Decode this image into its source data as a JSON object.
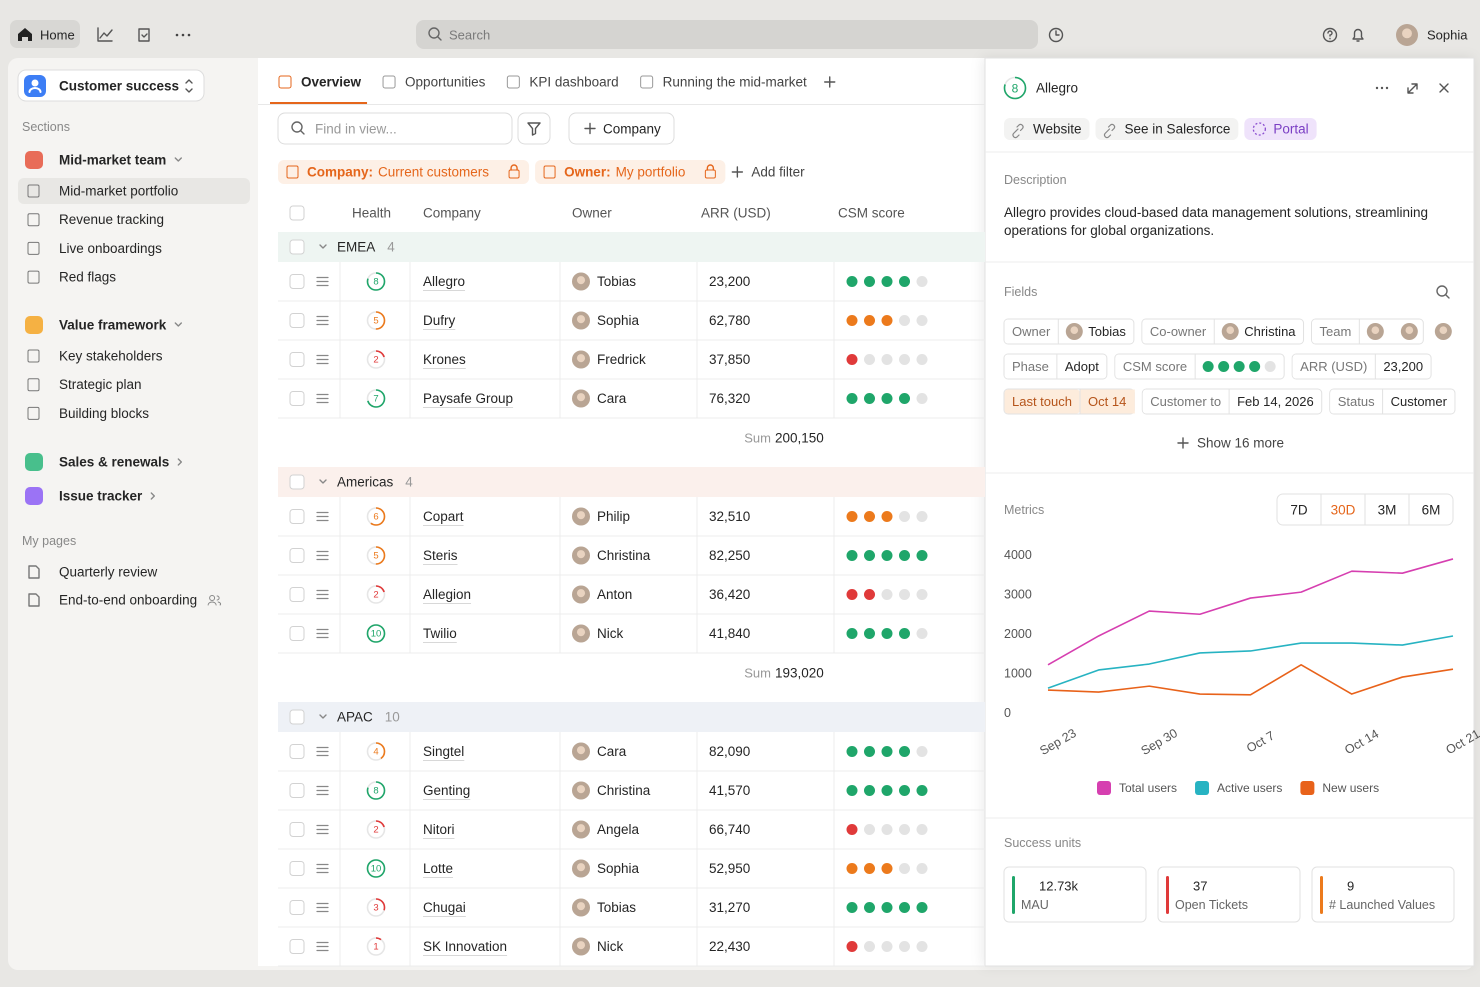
{
  "topbar": {
    "home": "Home",
    "search": "Search",
    "user": "Sophia"
  },
  "sidebar": {
    "workspace": "Customer success",
    "sections_label": "Sections",
    "sections": [
      {
        "name": "Mid-market team",
        "items": [
          "Mid-market portfolio",
          "Revenue tracking",
          "Live onboardings",
          "Red flags"
        ]
      },
      {
        "name": "Value framework",
        "items": [
          "Key stakeholders",
          "Strategic plan",
          "Building blocks"
        ]
      },
      {
        "name": "Sales & renewals",
        "items": []
      },
      {
        "name": "Issue tracker",
        "items": []
      }
    ],
    "my_pages_label": "My pages",
    "pages": [
      "Quarterly review",
      "End-to-end onboarding"
    ]
  },
  "tabs": [
    "Overview",
    "Opportunities",
    "KPI dashboard",
    "Running the mid-market"
  ],
  "toolbar": {
    "find": "Find in view...",
    "add": "Company"
  },
  "filters": [
    {
      "key": "Company:",
      "value": "Current customers"
    },
    {
      "key": "Owner:",
      "value": "My portfolio"
    }
  ],
  "add_filter": "Add filter",
  "table": {
    "columns": [
      "Health",
      "Company",
      "Owner",
      "ARR (USD)",
      "CSM score"
    ],
    "groups": [
      {
        "name": "EMEA",
        "count": 4,
        "rows": [
          {
            "health": 8,
            "company": "Allegro",
            "owner": "Tobias",
            "arr": "23,200",
            "csm": 4
          },
          {
            "health": 5,
            "company": "Dufry",
            "owner": "Sophia",
            "arr": "62,780",
            "csm": 3
          },
          {
            "health": 2,
            "company": "Krones",
            "owner": "Fredrick",
            "arr": "37,850",
            "csm": 1
          },
          {
            "health": 7,
            "company": "Paysafe Group",
            "owner": "Cara",
            "arr": "76,320",
            "csm": 4
          }
        ],
        "sum_label": "Sum",
        "sum": "200,150"
      },
      {
        "name": "Americas",
        "count": 4,
        "rows": [
          {
            "health": 6,
            "company": "Copart",
            "owner": "Philip",
            "arr": "32,510",
            "csm": 3
          },
          {
            "health": 5,
            "company": "Steris",
            "owner": "Christina",
            "arr": "82,250",
            "csm": 5
          },
          {
            "health": 2,
            "company": "Allegion",
            "owner": "Anton",
            "arr": "36,420",
            "csm": 2
          },
          {
            "health": 10,
            "company": "Twilio",
            "owner": "Nick",
            "arr": "41,840",
            "csm": 4
          }
        ],
        "sum_label": "Sum",
        "sum": "193,020"
      },
      {
        "name": "APAC",
        "count": 10,
        "rows": [
          {
            "health": 4,
            "company": "Singtel",
            "owner": "Cara",
            "arr": "82,090",
            "csm": 4
          },
          {
            "health": 8,
            "company": "Genting",
            "owner": "Christina",
            "arr": "41,570",
            "csm": 5
          },
          {
            "health": 2,
            "company": "Nitori",
            "owner": "Angela",
            "arr": "66,740",
            "csm": 1
          },
          {
            "health": 10,
            "company": "Lotte",
            "owner": "Sophia",
            "arr": "52,950",
            "csm": 3
          },
          {
            "health": 3,
            "company": "Chugai",
            "owner": "Tobias",
            "arr": "31,270",
            "csm": 5
          },
          {
            "health": 1,
            "company": "SK Innovation",
            "owner": "Nick",
            "arr": "22,430",
            "csm": 1
          }
        ]
      }
    ]
  },
  "panel": {
    "health": 8,
    "title": "Allegro",
    "links": [
      "Website",
      "See in Salesforce",
      "Portal"
    ],
    "description_label": "Description",
    "description": "Allegro provides cloud-based data management solutions, streamlining operations for global organizations.",
    "fields_label": "Fields",
    "fields": [
      [
        {
          "label": "Owner",
          "value": "Tobias",
          "avatars": 1
        },
        {
          "label": "Co-owner",
          "value": "Christina",
          "avatars": 1
        },
        {
          "label": "Team",
          "avatars": 3
        }
      ],
      [
        {
          "label": "Phase",
          "value": "Adopt"
        },
        {
          "label": "CSM score",
          "dots": 4
        },
        {
          "label": "ARR (USD)",
          "value": "23,200"
        }
      ],
      [
        {
          "label": "Last touch",
          "value": "Oct 14"
        },
        {
          "label": "Customer to",
          "value": "Feb 14, 2026"
        },
        {
          "label": "Status",
          "value": "Customer"
        }
      ]
    ],
    "show_more": "Show 16 more",
    "metrics_label": "Metrics",
    "ranges": [
      "7D",
      "30D",
      "3M",
      "6M"
    ],
    "selected_range": 1,
    "success_label": "Success units",
    "units": [
      {
        "value": "12.73k",
        "label": "MAU",
        "color": "#1fa66a"
      },
      {
        "value": "37",
        "label": "Open Tickets",
        "color": "#e03a3a"
      },
      {
        "value": "9",
        "label": "# Launched Values",
        "color": "#ec7a1c"
      }
    ]
  },
  "chart_data": {
    "type": "line",
    "categories": [
      "Sep 23",
      null,
      "Sep 30",
      null,
      "Oct 7",
      null,
      "Oct 14",
      null,
      "Oct 21"
    ],
    "ylim": [
      0,
      4000
    ],
    "yticks": [
      0,
      1000,
      2000,
      3000,
      4000
    ],
    "legend": "bottom",
    "series": [
      {
        "name": "Total users",
        "color": "#d63fb0",
        "values": [
          1220,
          1950,
          2580,
          2500,
          2910,
          3060,
          3590,
          3540,
          3900
        ]
      },
      {
        "name": "Active users",
        "color": "#27b3c2",
        "values": [
          630,
          1090,
          1240,
          1520,
          1570,
          1770,
          1770,
          1720,
          1950
        ]
      },
      {
        "name": "New users",
        "color": "#e8621a",
        "values": [
          580,
          530,
          680,
          480,
          460,
          1220,
          480,
          910,
          1110
        ]
      }
    ]
  }
}
